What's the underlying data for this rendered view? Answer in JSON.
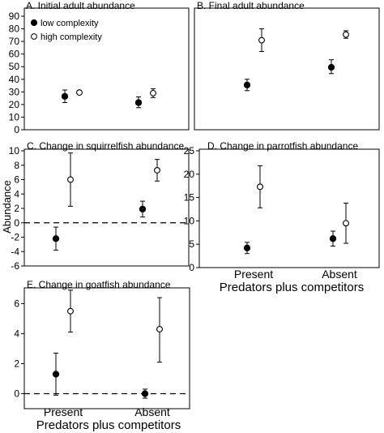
{
  "y_axis_label": "Abundance",
  "x_axis_label": "Predators plus competitors",
  "categories": [
    "Present",
    "Absent"
  ],
  "legend": [
    {
      "name": "low complexity",
      "marker": "filled"
    },
    {
      "name": "high complexity",
      "marker": "open"
    }
  ],
  "chart_data": [
    {
      "type": "scatter",
      "panel": "A",
      "title": "A. Initial adult abundance",
      "ylim": [
        0,
        90
      ],
      "yticks": [
        0,
        10,
        20,
        30,
        40,
        50,
        60,
        70,
        80,
        90
      ],
      "show_category_labels": false,
      "show_legend": true,
      "zero_line": false,
      "series": [
        {
          "name": "low complexity",
          "marker": "filled",
          "values": [
            26.5,
            21.5
          ],
          "lower": [
            21.5,
            17.5
          ],
          "upper": [
            31.5,
            26
          ]
        },
        {
          "name": "high complexity",
          "marker": "open",
          "values": [
            29.5,
            29
          ],
          "lower": [
            28,
            25.5
          ],
          "upper": [
            31,
            32.5
          ]
        }
      ]
    },
    {
      "type": "scatter",
      "panel": "B",
      "title": "B. Final adult abundance",
      "ylim": [
        0,
        90
      ],
      "yticks": [],
      "show_category_labels": false,
      "show_legend": false,
      "zero_line": false,
      "series": [
        {
          "name": "low complexity",
          "marker": "filled",
          "values": [
            35.5,
            49.5
          ],
          "lower": [
            31,
            44.5
          ],
          "upper": [
            40,
            55.5
          ]
        },
        {
          "name": "high complexity",
          "marker": "open",
          "values": [
            71,
            75.5
          ],
          "lower": [
            62,
            72.5
          ],
          "upper": [
            80,
            78.5
          ]
        }
      ]
    },
    {
      "type": "scatter",
      "panel": "C",
      "title": "C. Change in squirrelfish abundance",
      "ylim": [
        -6,
        10
      ],
      "yticks": [
        -6,
        -4,
        -2,
        0,
        2,
        4,
        6,
        8,
        10
      ],
      "show_category_labels": false,
      "show_legend": false,
      "zero_line": true,
      "series": [
        {
          "name": "low complexity",
          "marker": "filled",
          "values": [
            -2.2,
            1.9
          ],
          "lower": [
            -3.8,
            0.8
          ],
          "upper": [
            -0.6,
            3.0
          ]
        },
        {
          "name": "high complexity",
          "marker": "open",
          "values": [
            6.0,
            7.3
          ],
          "lower": [
            2.3,
            5.8
          ],
          "upper": [
            9.7,
            8.8
          ]
        }
      ]
    },
    {
      "type": "scatter",
      "panel": "D",
      "title": "D. Change in parrotfish abundance",
      "ylim": [
        0,
        25
      ],
      "yticks": [
        0,
        5,
        10,
        15,
        20,
        25
      ],
      "show_category_labels": true,
      "show_legend": false,
      "zero_line": false,
      "series": [
        {
          "name": "low complexity",
          "marker": "filled",
          "values": [
            4.2,
            6.2
          ],
          "lower": [
            3.0,
            4.6
          ],
          "upper": [
            5.4,
            7.8
          ]
        },
        {
          "name": "high complexity",
          "marker": "open",
          "values": [
            17.3,
            9.5
          ],
          "lower": [
            12.8,
            5.2
          ],
          "upper": [
            21.8,
            13.8
          ]
        }
      ]
    },
    {
      "type": "scatter",
      "panel": "E",
      "title": "E. Change in goatfish abundance",
      "ylim": [
        -1,
        7
      ],
      "yticks": [
        0,
        2,
        4,
        6
      ],
      "show_category_labels": true,
      "show_legend": false,
      "zero_line": true,
      "series": [
        {
          "name": "low complexity",
          "marker": "filled",
          "values": [
            1.3,
            0.0
          ],
          "lower": [
            -0.1,
            -0.3
          ],
          "upper": [
            2.7,
            0.3
          ]
        },
        {
          "name": "high complexity",
          "marker": "open",
          "values": [
            5.5,
            4.3
          ],
          "lower": [
            4.1,
            2.1
          ],
          "upper": [
            6.9,
            6.4
          ]
        }
      ]
    }
  ]
}
